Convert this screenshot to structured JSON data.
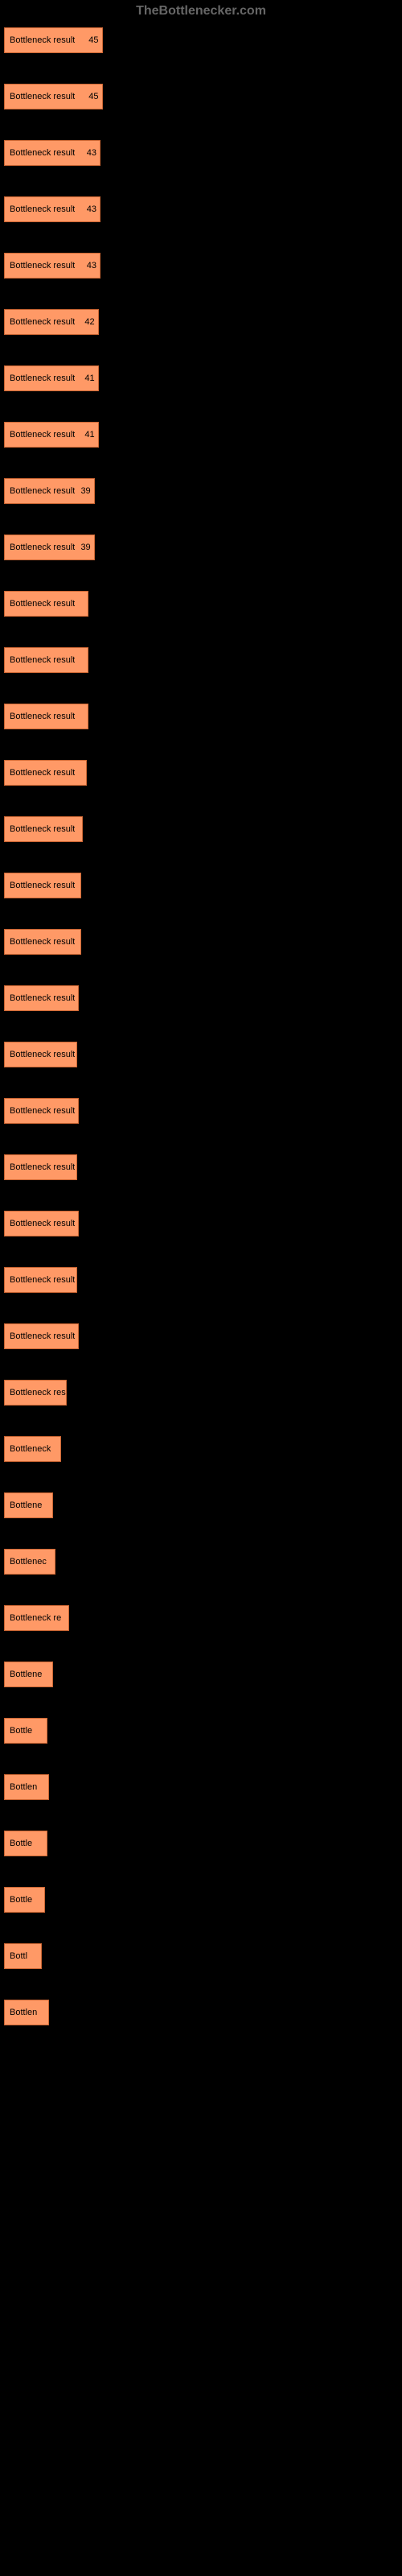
{
  "watermark": "TheBottlenecker.com",
  "chart": {
    "type": "bar",
    "background_color": "#000000",
    "bar_color": "#ff9966",
    "bar_border_color": "#cc6633",
    "text_color_on_bar": "#000000",
    "text_color_outside": "#ffffff",
    "label_fontsize": 11,
    "value_fontsize": 11,
    "max_width_percent": 25,
    "bars": [
      {
        "label": "",
        "text": "Bottleneck result",
        "value": 45,
        "width": 25
      },
      {
        "label": "",
        "text": "Bottleneck result",
        "value": 45,
        "width": 25
      },
      {
        "label": "",
        "text": "Bottleneck result",
        "value": 43,
        "width": 24.5
      },
      {
        "label": "",
        "text": "Bottleneck result",
        "value": 43,
        "width": 24.5
      },
      {
        "label": "",
        "text": "Bottleneck result",
        "value": 43,
        "width": 24.5
      },
      {
        "label": "",
        "text": "Bottleneck result",
        "value": 42,
        "width": 24
      },
      {
        "label": "",
        "text": "Bottleneck result",
        "value": 41,
        "width": 24
      },
      {
        "label": "",
        "text": "Bottleneck result",
        "value": 41,
        "width": 24
      },
      {
        "label": "",
        "text": "Bottleneck result",
        "value": 39,
        "width": 23
      },
      {
        "label": "",
        "text": "Bottleneck result",
        "value": 39,
        "width": 23
      },
      {
        "label": "",
        "text": "Bottleneck result",
        "value": 37,
        "width": 21.5
      },
      {
        "label": "",
        "text": "Bottleneck result",
        "value": 37,
        "width": 21.5
      },
      {
        "label": "",
        "text": "Bottleneck result",
        "value": 37,
        "width": 21.5
      },
      {
        "label": "",
        "text": "Bottleneck result",
        "value": 36,
        "width": 21
      },
      {
        "label": "",
        "text": "Bottleneck result",
        "value": 35,
        "width": 20
      },
      {
        "label": "",
        "text": "Bottleneck result",
        "value": 34,
        "width": 19.5
      },
      {
        "label": "",
        "text": "Bottleneck result",
        "value": 34,
        "width": 19.5
      },
      {
        "label": "",
        "text": "Bottleneck result",
        "value": 33,
        "width": 19
      },
      {
        "label": "",
        "text": "Bottleneck result",
        "value": 33,
        "width": 18.5
      },
      {
        "label": "",
        "text": "Bottleneck result",
        "value": 33,
        "width": 19
      },
      {
        "label": "",
        "text": "Bottleneck result",
        "value": 33,
        "width": 18.5
      },
      {
        "label": "",
        "text": "Bottleneck result",
        "value": 33,
        "width": 19
      },
      {
        "label": "",
        "text": "Bottleneck result",
        "value": 32,
        "width": 18.5
      },
      {
        "label": "",
        "text": "Bottleneck result",
        "value": 32,
        "width": 19
      },
      {
        "label": "",
        "text": "Bottleneck result",
        "value": 29,
        "width": 16
      },
      {
        "label": "",
        "text": "Bottleneck",
        "value": 27,
        "width": 14.5
      },
      {
        "label": "",
        "text": "Bottlene",
        "value": 23,
        "width": 12.5
      },
      {
        "label": "",
        "text": "Bottlenec",
        "value": 24,
        "width": 13
      },
      {
        "label": "",
        "text": "Bottleneck re",
        "value": 30,
        "width": 16.5
      },
      {
        "label": "",
        "text": "Bottlene",
        "value": 23,
        "width": 12.5
      },
      {
        "label": "",
        "text": "Bottle",
        "value": 20,
        "width": 11
      },
      {
        "label": "",
        "text": "Bottlen",
        "value": 22,
        "width": 11.5
      },
      {
        "label": "",
        "text": "Bottle",
        "value": 20,
        "width": 11
      },
      {
        "label": "",
        "text": "Bottle",
        "value": 20,
        "width": 10.5
      },
      {
        "label": "",
        "text": "Bottl",
        "value": 18,
        "width": 9.5
      },
      {
        "label": "",
        "text": "Bottlen",
        "value": 21,
        "width": 11.5
      }
    ]
  }
}
